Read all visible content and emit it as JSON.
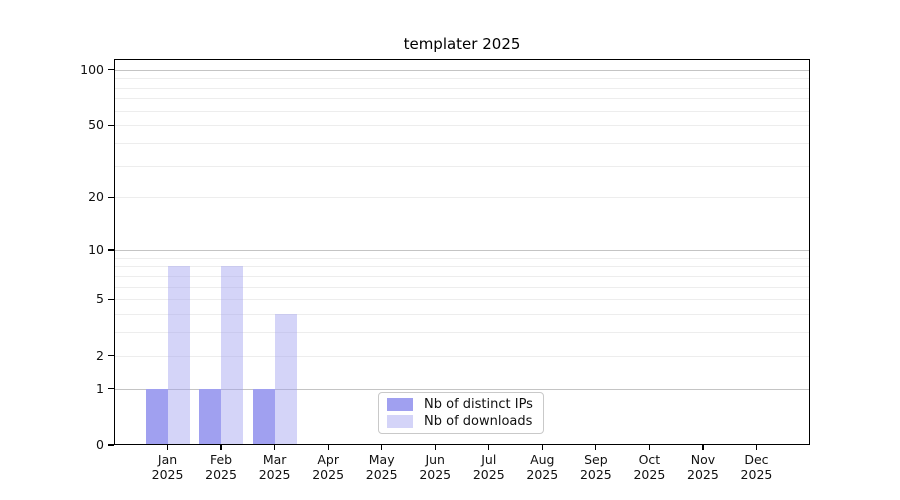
{
  "chart_data": {
    "type": "bar",
    "title": "templater 2025",
    "categories": [
      {
        "month": "Jan",
        "year": "2025"
      },
      {
        "month": "Feb",
        "year": "2025"
      },
      {
        "month": "Mar",
        "year": "2025"
      },
      {
        "month": "Apr",
        "year": "2025"
      },
      {
        "month": "May",
        "year": "2025"
      },
      {
        "month": "Jun",
        "year": "2025"
      },
      {
        "month": "Jul",
        "year": "2025"
      },
      {
        "month": "Aug",
        "year": "2025"
      },
      {
        "month": "Sep",
        "year": "2025"
      },
      {
        "month": "Oct",
        "year": "2025"
      },
      {
        "month": "Nov",
        "year": "2025"
      },
      {
        "month": "Dec",
        "year": "2025"
      }
    ],
    "series": [
      {
        "name": "Nb of distinct IPs",
        "color_key": "distinct_ips",
        "values": [
          1,
          1,
          1,
          0,
          0,
          0,
          0,
          0,
          0,
          0,
          0,
          0
        ]
      },
      {
        "name": "Nb of downloads",
        "color_key": "downloads",
        "values": [
          8,
          8,
          4,
          0,
          0,
          0,
          0,
          0,
          0,
          0,
          0,
          0
        ]
      }
    ],
    "yscale": "log1p",
    "ylim": [
      0,
      114
    ],
    "ytick_labels": [
      0,
      1,
      2,
      5,
      10,
      20,
      50,
      100
    ],
    "grid_major_values": [
      1,
      10,
      100
    ],
    "grid_minor_values": [
      2,
      3,
      4,
      5,
      6,
      7,
      8,
      9,
      20,
      30,
      40,
      50,
      60,
      70,
      80,
      90
    ],
    "legend_position": "lower center",
    "xlabel": "",
    "ylabel": ""
  },
  "colors": {
    "distinct_ips": "#a0a0f0",
    "downloads_base": "#a0a0f0",
    "downloads_alpha": 0.45,
    "grid_major": "#c4c4c4",
    "grid_minor": "#ededed",
    "axis": "#000000",
    "text": "#111111",
    "legend_border": "#c9c9c9",
    "background": "#ffffff"
  }
}
